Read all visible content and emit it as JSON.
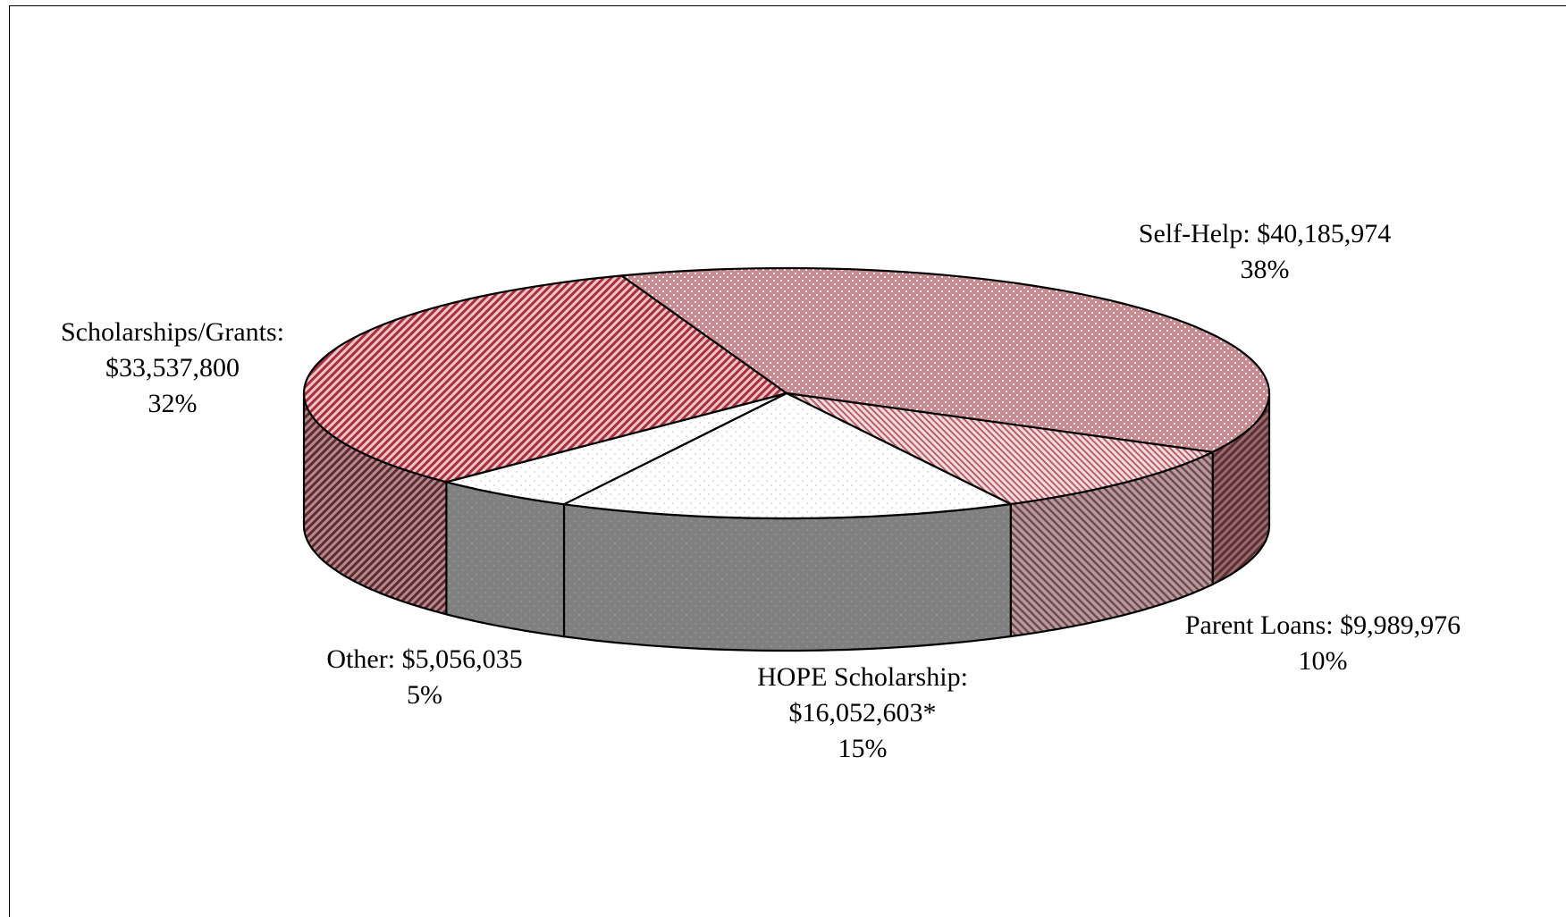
{
  "chart_data": {
    "type": "pie",
    "style": "3d-exploded-none",
    "slices": [
      {
        "label": "Self-Help",
        "value_text": "$40,185,974",
        "value": 40185974,
        "percent": "38%",
        "fill": "#c0808a",
        "pattern": "dotted-grid"
      },
      {
        "label": "Parent Loans",
        "value_text": "$9,989,976",
        "value": 9989976,
        "percent": "10%",
        "fill": "#d8a0a6",
        "pattern": "fine-diagonal"
      },
      {
        "label": "HOPE Scholarship",
        "value_text": "$16,052,603*",
        "value": 16052603,
        "percent": "15%",
        "fill": "#ffffff",
        "pattern": "sparse-dots"
      },
      {
        "label": "Other",
        "value_text": "$5,056,035",
        "value": 5056035,
        "percent": "5%",
        "fill": "#ffffff",
        "pattern": "sparse-dots"
      },
      {
        "label": "Scholarships/Grants",
        "value_text": "$33,537,800",
        "value": 33537800,
        "percent": "32%",
        "fill": "#b05060",
        "pattern": "diagonal-stripes"
      }
    ],
    "side_colors": {
      "Self-Help": "#7a4a4e",
      "Parent Loans": "#8a6a6e",
      "HOPE Scholarship": "#808080",
      "Other": "#808080",
      "Scholarships/Grants": "#7a3a40"
    }
  },
  "labels": {
    "self_help": {
      "line1": "Self-Help: $40,185,974",
      "line2": "38%"
    },
    "parent_loans": {
      "line1": "Parent Loans: $9,989,976",
      "line2": "10%"
    },
    "hope": {
      "line1": "HOPE Scholarship:",
      "line2": "$16,052,603*",
      "line3": "15%"
    },
    "other": {
      "line1": "Other: $5,056,035",
      "line2": "5%"
    },
    "scholarships": {
      "line1": "Scholarships/Grants:",
      "line2": "$33,537,800",
      "line3": "32%"
    }
  }
}
